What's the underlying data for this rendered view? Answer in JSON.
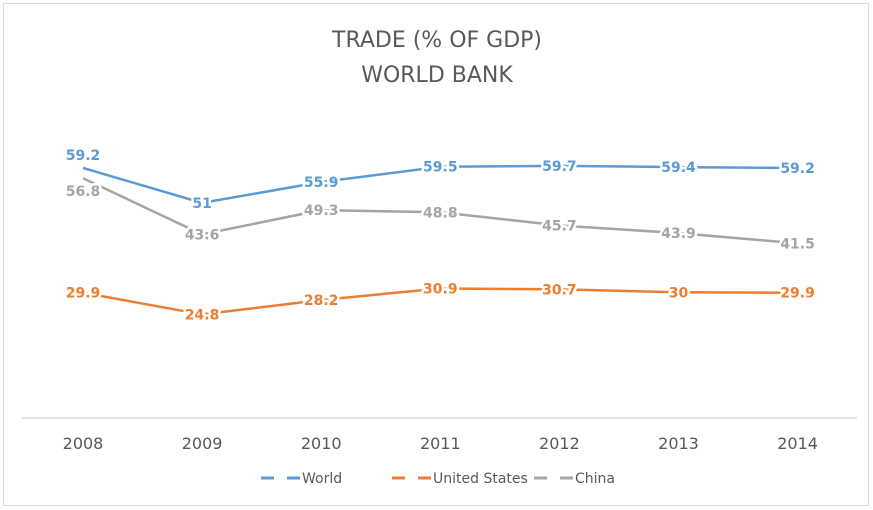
{
  "chart_data": {
    "type": "line",
    "title": "TRADE (% OF GDP)",
    "subtitle": "WORLD BANK",
    "categories": [
      "2008",
      "2009",
      "2010",
      "2011",
      "2012",
      "2013",
      "2014"
    ],
    "ylim": [
      0,
      70
    ],
    "grid": false,
    "legend": "bottom",
    "series": [
      {
        "name": "World",
        "color": "#5b9bd5",
        "values": [
          59.2,
          51,
          55.9,
          59.5,
          59.7,
          59.4,
          59.2
        ],
        "labels": [
          "59.2",
          "51",
          "55.9",
          "59.5",
          "59.7",
          "59.4",
          "59.2"
        ]
      },
      {
        "name": "United States",
        "color": "#ed7d31",
        "values": [
          29.9,
          24.8,
          28.2,
          30.9,
          30.7,
          30,
          29.9
        ],
        "labels": [
          "29.9",
          "24.8",
          "28.2",
          "30.9",
          "30.7",
          "30",
          "29.9"
        ]
      },
      {
        "name": "China",
        "color": "#a5a5a5",
        "values": [
          56.8,
          43.6,
          49.3,
          48.8,
          45.7,
          43.9,
          41.5
        ],
        "labels": [
          "56.8",
          "43.6",
          "49.3",
          "48.8",
          "45.7",
          "43.9",
          "41.5"
        ]
      }
    ]
  }
}
